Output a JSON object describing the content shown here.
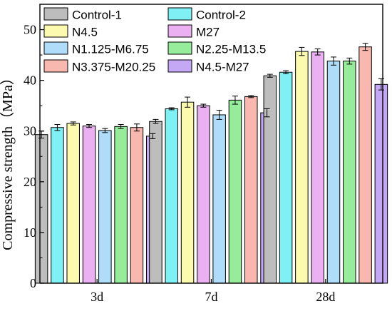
{
  "chart_data": {
    "type": "bar",
    "title": "",
    "xlabel": "",
    "ylabel": "Compressive strength（MPa）",
    "ylim": [
      0,
      55
    ],
    "yticks": [
      0,
      10,
      20,
      30,
      40,
      50
    ],
    "grid": false,
    "legend_position": "top",
    "categories": [
      "3d",
      "7d",
      "28d"
    ],
    "series": [
      {
        "name": "Control-1",
        "color": "#bdbdbd",
        "values": [
          29.3,
          31.9,
          40.9
        ],
        "errors": [
          0.7,
          0.4,
          0.3
        ]
      },
      {
        "name": "Control-2",
        "color": "#7ff0f3",
        "values": [
          30.7,
          34.4,
          41.6
        ],
        "errors": [
          0.6,
          0.2,
          0.3
        ]
      },
      {
        "name": "N4.5",
        "color": "#fbfaae",
        "values": [
          31.5,
          35.7,
          45.7
        ],
        "errors": [
          0.3,
          1.0,
          0.8
        ]
      },
      {
        "name": "M27",
        "color": "#ebb0f2",
        "values": [
          31.0,
          35.0,
          45.6
        ],
        "errors": [
          0.3,
          0.3,
          0.6
        ]
      },
      {
        "name": "N1.125-M6.75",
        "color": "#afdcf8",
        "values": [
          30.1,
          33.2,
          43.8
        ],
        "errors": [
          0.4,
          0.9,
          0.8
        ]
      },
      {
        "name": "N2.25-M13.5",
        "color": "#96ec9a",
        "values": [
          30.9,
          36.1,
          43.8
        ],
        "errors": [
          0.4,
          0.8,
          0.6
        ]
      },
      {
        "name": "N3.375-M20.25",
        "color": "#f8b8b0",
        "values": [
          30.7,
          36.8,
          46.6
        ],
        "errors": [
          0.7,
          0.2,
          0.7
        ]
      },
      {
        "name": "N4.5-M27",
        "color": "#c4a8f5",
        "values": [
          29.0,
          33.6,
          39.2
        ],
        "errors": [
          0.5,
          0.8,
          1.1
        ]
      }
    ]
  }
}
